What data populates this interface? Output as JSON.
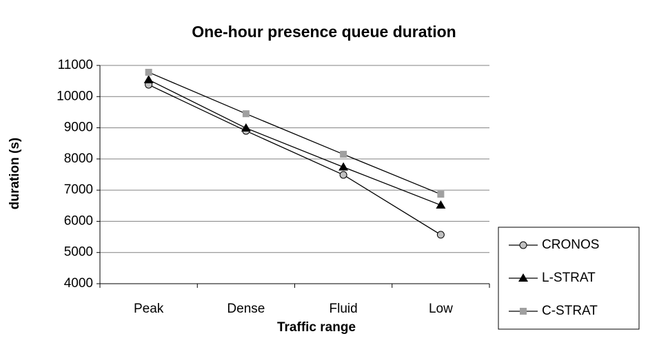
{
  "chart_data": {
    "type": "line",
    "title": "One-hour presence queue duration",
    "x_label": "Traffic range",
    "y_label": "duration (s)",
    "categories": [
      "Peak",
      "Dense",
      "Fluid",
      "Low"
    ],
    "series": [
      {
        "name": "CRONOS",
        "color": "#c0c0c0",
        "marker": "circle",
        "values": [
          10380,
          8900,
          7490,
          5570
        ]
      },
      {
        "name": "L-STRAT",
        "color": "#000000",
        "marker": "triangle",
        "values": [
          10540,
          8990,
          7740,
          6520
        ]
      },
      {
        "name": "C-STRAT",
        "color": "#a0a0a0",
        "marker": "square",
        "values": [
          10780,
          9450,
          8150,
          6870
        ]
      }
    ],
    "ylim": [
      4000,
      11000
    ],
    "yticks": [
      4000,
      5000,
      6000,
      7000,
      8000,
      9000,
      10000,
      11000
    ],
    "grid": true,
    "legend": "lower right"
  }
}
